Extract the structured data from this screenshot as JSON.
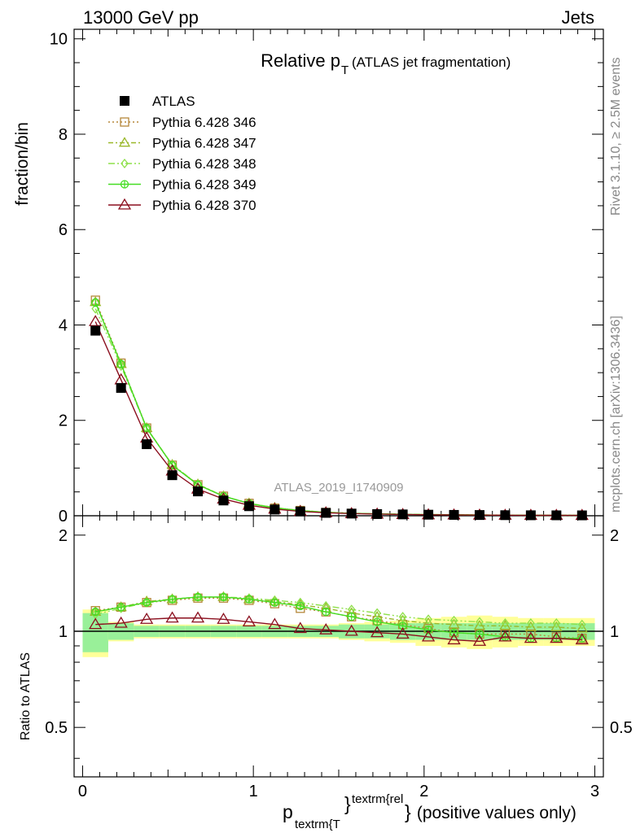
{
  "header": {
    "left": "13000 GeV pp",
    "right": "Jets"
  },
  "chart_data": {
    "type": "line",
    "title_main": "Relative p",
    "title_sub": "T",
    "title_note": "(ATLAS jet fragmentation)",
    "ylabel": "fraction/bin",
    "ratio_ylabel": "Ratio to ATLAS",
    "xlabel": {
      "p": "p",
      "sub": "textrm{T",
      "brace": "}",
      "sup": "textrm{rel",
      "closing": "}",
      "rest": " (positive values only)"
    },
    "watermark": "ATLAS_2019_I1740909",
    "side_text_top": "Rivet 3.1.10, ≥ 2.5M events",
    "side_text_bottom": "mcplots.cern.ch [arXiv:1306.3436]",
    "xlim": [
      -0.05,
      3.05
    ],
    "ylim": [
      0,
      10.2
    ],
    "ratio_ylim": [
      0.35,
      2.3
    ],
    "x_ticks": [
      "0",
      "1",
      "2",
      "3"
    ],
    "y_ticks": [
      "0",
      "2",
      "4",
      "6",
      "8",
      "10"
    ],
    "ratio_ticks": [
      "0.5",
      "1",
      "2"
    ],
    "x": [
      0.075,
      0.225,
      0.375,
      0.525,
      0.675,
      0.825,
      0.975,
      1.125,
      1.275,
      1.425,
      1.575,
      1.725,
      1.875,
      2.025,
      2.175,
      2.325,
      2.475,
      2.625,
      2.775,
      2.925
    ],
    "x_edges": [
      0,
      0.15,
      0.3,
      0.45,
      0.6,
      0.75,
      0.9,
      1.05,
      1.2,
      1.35,
      1.5,
      1.65,
      1.8,
      1.95,
      2.1,
      2.25,
      2.4,
      2.55,
      2.7,
      2.85,
      3.0
    ],
    "data": {
      "name": "ATLAS",
      "values": [
        3.88,
        2.68,
        1.5,
        0.85,
        0.51,
        0.32,
        0.2,
        0.13,
        0.09,
        0.06,
        0.045,
        0.035,
        0.028,
        0.022,
        0.018,
        0.015,
        0.012,
        0.01,
        0.009,
        0.008
      ]
    },
    "band_inner": [
      0.14,
      0.06,
      0.04,
      0.04,
      0.04,
      0.04,
      0.04,
      0.04,
      0.04,
      0.04,
      0.05,
      0.05,
      0.06,
      0.06,
      0.06,
      0.06,
      0.06,
      0.06,
      0.06,
      0.06
    ],
    "band_outer": [
      0.17,
      0.07,
      0.05,
      0.05,
      0.05,
      0.05,
      0.05,
      0.05,
      0.05,
      0.05,
      0.06,
      0.07,
      0.08,
      0.1,
      0.11,
      0.12,
      0.11,
      0.1,
      0.1,
      0.1
    ],
    "series": [
      {
        "name": "Pythia 6.428 346",
        "color": "#b5873a",
        "marker": "square",
        "dash": "2,3",
        "values": [
          4.52,
          3.2,
          1.84,
          1.06,
          0.65,
          0.41,
          0.26,
          0.16,
          0.11,
          0.07,
          0.05,
          0.04,
          0.031,
          0.024,
          0.019,
          0.016,
          0.012,
          0.01,
          0.009,
          0.008
        ],
        "ratio": [
          1.16,
          1.19,
          1.23,
          1.25,
          1.27,
          1.27,
          1.25,
          1.22,
          1.18,
          1.15,
          1.11,
          1.08,
          1.05,
          1.02,
          0.99,
          0.98,
          0.98,
          0.98,
          0.96,
          0.95
        ]
      },
      {
        "name": "Pythia 6.428 347",
        "color": "#9ab82a",
        "marker": "triangle",
        "dash": "6,3,2,3",
        "values": [
          4.48,
          3.18,
          1.84,
          1.07,
          0.66,
          0.41,
          0.26,
          0.17,
          0.11,
          0.075,
          0.052,
          0.04,
          0.032,
          0.025,
          0.02,
          0.016,
          0.013,
          0.011,
          0.01,
          0.009
        ],
        "ratio": [
          1.15,
          1.19,
          1.24,
          1.26,
          1.28,
          1.28,
          1.26,
          1.24,
          1.21,
          1.18,
          1.14,
          1.11,
          1.08,
          1.06,
          1.05,
          1.04,
          1.04,
          1.03,
          1.03,
          1.02
        ]
      },
      {
        "name": "Pythia 6.428 348",
        "color": "#8ee04a",
        "marker": "diamond",
        "dash": "8,3,2,3,2,3",
        "values": [
          4.34,
          3.14,
          1.83,
          1.07,
          0.66,
          0.41,
          0.26,
          0.17,
          0.11,
          0.075,
          0.053,
          0.041,
          0.033,
          0.027,
          0.021,
          0.018,
          0.014,
          0.012,
          0.011,
          0.009
        ],
        "ratio": [
          1.13,
          1.18,
          1.23,
          1.26,
          1.28,
          1.28,
          1.27,
          1.25,
          1.23,
          1.2,
          1.17,
          1.14,
          1.11,
          1.09,
          1.08,
          1.07,
          1.06,
          1.06,
          1.06,
          1.05
        ]
      },
      {
        "name": "Pythia 6.428 349",
        "color": "#44dd22",
        "marker": "circle",
        "dash": "",
        "values": [
          4.47,
          3.18,
          1.84,
          1.06,
          0.65,
          0.41,
          0.26,
          0.16,
          0.11,
          0.07,
          0.05,
          0.04,
          0.03,
          0.024,
          0.019,
          0.015,
          0.012,
          0.01,
          0.009,
          0.008
        ],
        "ratio": [
          1.15,
          1.19,
          1.23,
          1.26,
          1.28,
          1.28,
          1.26,
          1.23,
          1.2,
          1.15,
          1.11,
          1.07,
          1.04,
          1.01,
          0.99,
          0.98,
          0.96,
          0.95,
          0.95,
          0.95
        ]
      },
      {
        "name": "Pythia 6.428 370",
        "color": "#8b0f1e",
        "marker": "triangle-open",
        "dash": "",
        "values": [
          4.07,
          2.85,
          1.63,
          0.94,
          0.56,
          0.35,
          0.22,
          0.14,
          0.09,
          0.062,
          0.045,
          0.035,
          0.027,
          0.021,
          0.017,
          0.014,
          0.011,
          0.0095,
          0.0085,
          0.0075
        ],
        "ratio": [
          1.05,
          1.06,
          1.09,
          1.1,
          1.1,
          1.09,
          1.07,
          1.05,
          1.02,
          1.01,
          1.0,
          0.99,
          0.98,
          0.96,
          0.94,
          0.93,
          0.96,
          0.95,
          0.95,
          0.94
        ]
      }
    ]
  }
}
